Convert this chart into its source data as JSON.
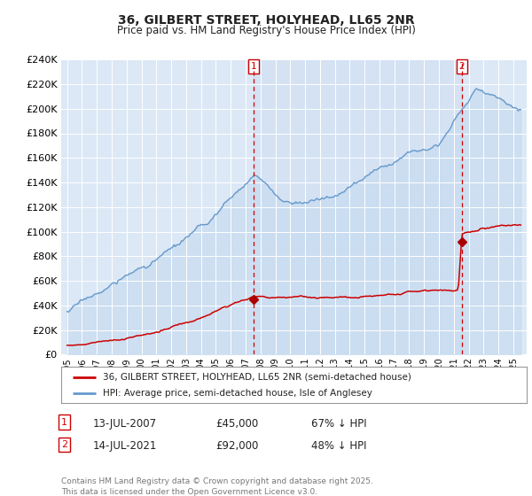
{
  "title": "36, GILBERT STREET, HOLYHEAD, LL65 2NR",
  "subtitle": "Price paid vs. HM Land Registry's House Price Index (HPI)",
  "bg_color": "#dce8f5",
  "hpi_color": "#6699cc",
  "hpi_fill_color": "#c8dcf0",
  "price_color": "#cc0000",
  "marker_color": "#aa0000",
  "ylim": [
    0,
    240000
  ],
  "ytick_vals": [
    0,
    20000,
    40000,
    60000,
    80000,
    100000,
    120000,
    140000,
    160000,
    180000,
    200000,
    220000,
    240000
  ],
  "xlim_left": 1994.6,
  "xlim_right": 2025.9,
  "sale1_year": 2007.54,
  "sale1_price": 45000,
  "sale2_year": 2021.54,
  "sale2_price": 92000,
  "legend_entry1": "36, GILBERT STREET, HOLYHEAD, LL65 2NR (semi-detached house)",
  "legend_entry2": "HPI: Average price, semi-detached house, Isle of Anglesey",
  "info1_date": "13-JUL-2007",
  "info1_price": "£45,000",
  "info1_extra": "67% ↓ HPI",
  "info2_date": "14-JUL-2021",
  "info2_price": "£92,000",
  "info2_extra": "48% ↓ HPI",
  "footnote": "Contains HM Land Registry data © Crown copyright and database right 2025.\nThis data is licensed under the Open Government Licence v3.0."
}
